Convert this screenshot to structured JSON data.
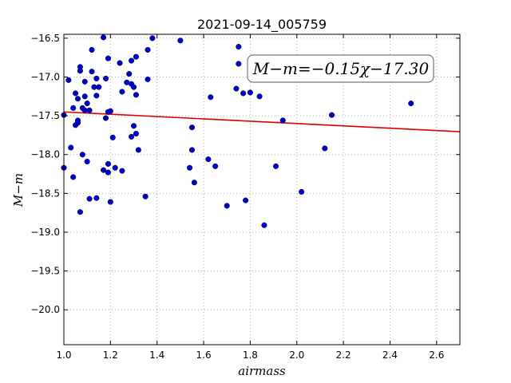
{
  "chart_data": {
    "type": "scatter",
    "title": "2021-09-14_005759",
    "xlabel": "airmass",
    "ylabel": "M−m",
    "xlim": [
      1.0,
      2.7
    ],
    "ylim": [
      -16.45,
      -20.45
    ],
    "y_inverted": true,
    "x_ticks": [
      1.0,
      1.2,
      1.4,
      1.6,
      1.8,
      2.0,
      2.2,
      2.4,
      2.6
    ],
    "x_tick_labels": [
      "1.0",
      "1.2",
      "1.4",
      "1.6",
      "1.8",
      "2.0",
      "2.2",
      "2.4",
      "2.6"
    ],
    "y_ticks": [
      -16.5,
      -17.0,
      -17.5,
      -18.0,
      -18.5,
      -19.0,
      -19.5,
      -20.0
    ],
    "y_tick_labels": [
      "−16.5",
      "−17.0",
      "−17.5",
      "−18.0",
      "−18.5",
      "−19.0",
      "−19.5",
      "−20.0"
    ],
    "grid": true,
    "annotation": "M−m=−0.15χ−17.30",
    "annotation_position": "top-right",
    "point_color": "#0000cc",
    "fit_color": "#dd0000",
    "fit": {
      "slope": -0.15,
      "intercept": -17.3
    },
    "points": [
      [
        1.0,
        -17.49
      ],
      [
        1.0,
        -18.17
      ],
      [
        1.02,
        -17.04
      ],
      [
        1.03,
        -17.91
      ],
      [
        1.04,
        -18.29
      ],
      [
        1.04,
        -17.4
      ],
      [
        1.05,
        -17.21
      ],
      [
        1.05,
        -17.62
      ],
      [
        1.06,
        -17.28
      ],
      [
        1.06,
        -17.59
      ],
      [
        1.06,
        -17.56
      ],
      [
        1.07,
        -16.92
      ],
      [
        1.07,
        -16.87
      ],
      [
        1.07,
        -18.74
      ],
      [
        1.08,
        -18.0
      ],
      [
        1.08,
        -17.4
      ],
      [
        1.09,
        -17.43
      ],
      [
        1.09,
        -17.06
      ],
      [
        1.09,
        -17.25
      ],
      [
        1.1,
        -18.09
      ],
      [
        1.1,
        -17.34
      ],
      [
        1.11,
        -17.43
      ],
      [
        1.11,
        -18.57
      ],
      [
        1.12,
        -16.65
      ],
      [
        1.12,
        -16.93
      ],
      [
        1.13,
        -17.13
      ],
      [
        1.14,
        -17.24
      ],
      [
        1.14,
        -18.56
      ],
      [
        1.14,
        -17.02
      ],
      [
        1.15,
        -17.13
      ],
      [
        1.17,
        -18.2
      ],
      [
        1.17,
        -16.49
      ],
      [
        1.18,
        -17.53
      ],
      [
        1.18,
        -17.02
      ],
      [
        1.19,
        -17.45
      ],
      [
        1.19,
        -16.76
      ],
      [
        1.19,
        -18.12
      ],
      [
        1.19,
        -18.23
      ],
      [
        1.2,
        -17.44
      ],
      [
        1.2,
        -18.61
      ],
      [
        1.21,
        -17.78
      ],
      [
        1.22,
        -18.17
      ],
      [
        1.24,
        -16.82
      ],
      [
        1.25,
        -18.21
      ],
      [
        1.25,
        -17.19
      ],
      [
        1.27,
        -17.07
      ],
      [
        1.28,
        -16.96
      ],
      [
        1.29,
        -17.77
      ],
      [
        1.29,
        -17.09
      ],
      [
        1.29,
        -16.79
      ],
      [
        1.3,
        -17.13
      ],
      [
        1.3,
        -17.63
      ],
      [
        1.31,
        -17.73
      ],
      [
        1.31,
        -16.74
      ],
      [
        1.31,
        -17.23
      ],
      [
        1.32,
        -17.94
      ],
      [
        1.35,
        -18.54
      ],
      [
        1.36,
        -16.65
      ],
      [
        1.36,
        -17.03
      ],
      [
        1.38,
        -16.5
      ],
      [
        1.5,
        -16.53
      ],
      [
        1.54,
        -18.17
      ],
      [
        1.55,
        -17.94
      ],
      [
        1.55,
        -17.65
      ],
      [
        1.56,
        -18.36
      ],
      [
        1.62,
        -18.06
      ],
      [
        1.63,
        -17.26
      ],
      [
        1.65,
        -18.15
      ],
      [
        1.7,
        -18.66
      ],
      [
        1.74,
        -17.15
      ],
      [
        1.75,
        -16.61
      ],
      [
        1.75,
        -16.83
      ],
      [
        1.77,
        -17.21
      ],
      [
        1.78,
        -18.59
      ],
      [
        1.8,
        -17.2
      ],
      [
        1.84,
        -17.25
      ],
      [
        1.86,
        -18.91
      ],
      [
        1.91,
        -18.15
      ],
      [
        1.94,
        -17.56
      ],
      [
        2.02,
        -18.48
      ],
      [
        2.12,
        -17.92
      ],
      [
        2.15,
        -17.49
      ],
      [
        2.49,
        -17.34
      ]
    ]
  }
}
